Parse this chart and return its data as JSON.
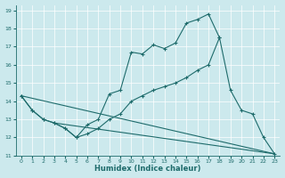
{
  "xlabel": "Humidex (Indice chaleur)",
  "xlim": [
    -0.5,
    23.5
  ],
  "ylim": [
    11,
    19.3
  ],
  "yticks": [
    11,
    12,
    13,
    14,
    15,
    16,
    17,
    18,
    19
  ],
  "xticks": [
    0,
    1,
    2,
    3,
    4,
    5,
    6,
    7,
    8,
    9,
    10,
    11,
    12,
    13,
    14,
    15,
    16,
    17,
    18,
    19,
    20,
    21,
    22,
    23
  ],
  "bg_color": "#cce9ed",
  "line_color": "#1e6b6b",
  "series": [
    {
      "x": [
        0,
        1,
        2,
        3,
        4,
        5,
        6,
        7,
        8,
        9,
        10,
        11,
        12,
        13,
        14,
        15,
        16,
        17,
        18
      ],
      "y": [
        14.3,
        13.5,
        13.0,
        12.8,
        12.5,
        12.0,
        12.7,
        13.0,
        14.4,
        14.6,
        16.7,
        16.6,
        17.1,
        16.9,
        17.2,
        18.3,
        18.5,
        18.8,
        17.5
      ],
      "marker": true
    },
    {
      "x": [
        0,
        1,
        2,
        3,
        4,
        5,
        6,
        7,
        8,
        9,
        10,
        11,
        12,
        13,
        14,
        15,
        16,
        17,
        18,
        19,
        20,
        21,
        22,
        23
      ],
      "y": [
        14.3,
        13.5,
        13.0,
        12.8,
        12.5,
        12.0,
        12.2,
        12.5,
        13.0,
        13.3,
        14.0,
        14.3,
        14.6,
        14.8,
        15.0,
        15.3,
        15.7,
        16.0,
        17.5,
        14.6,
        13.5,
        13.3,
        12.0,
        11.1
      ],
      "marker": true
    },
    {
      "x": [
        0,
        23
      ],
      "y": [
        14.3,
        11.1
      ],
      "marker": false
    },
    {
      "x": [
        3,
        23
      ],
      "y": [
        12.8,
        11.1
      ],
      "marker": false
    }
  ]
}
